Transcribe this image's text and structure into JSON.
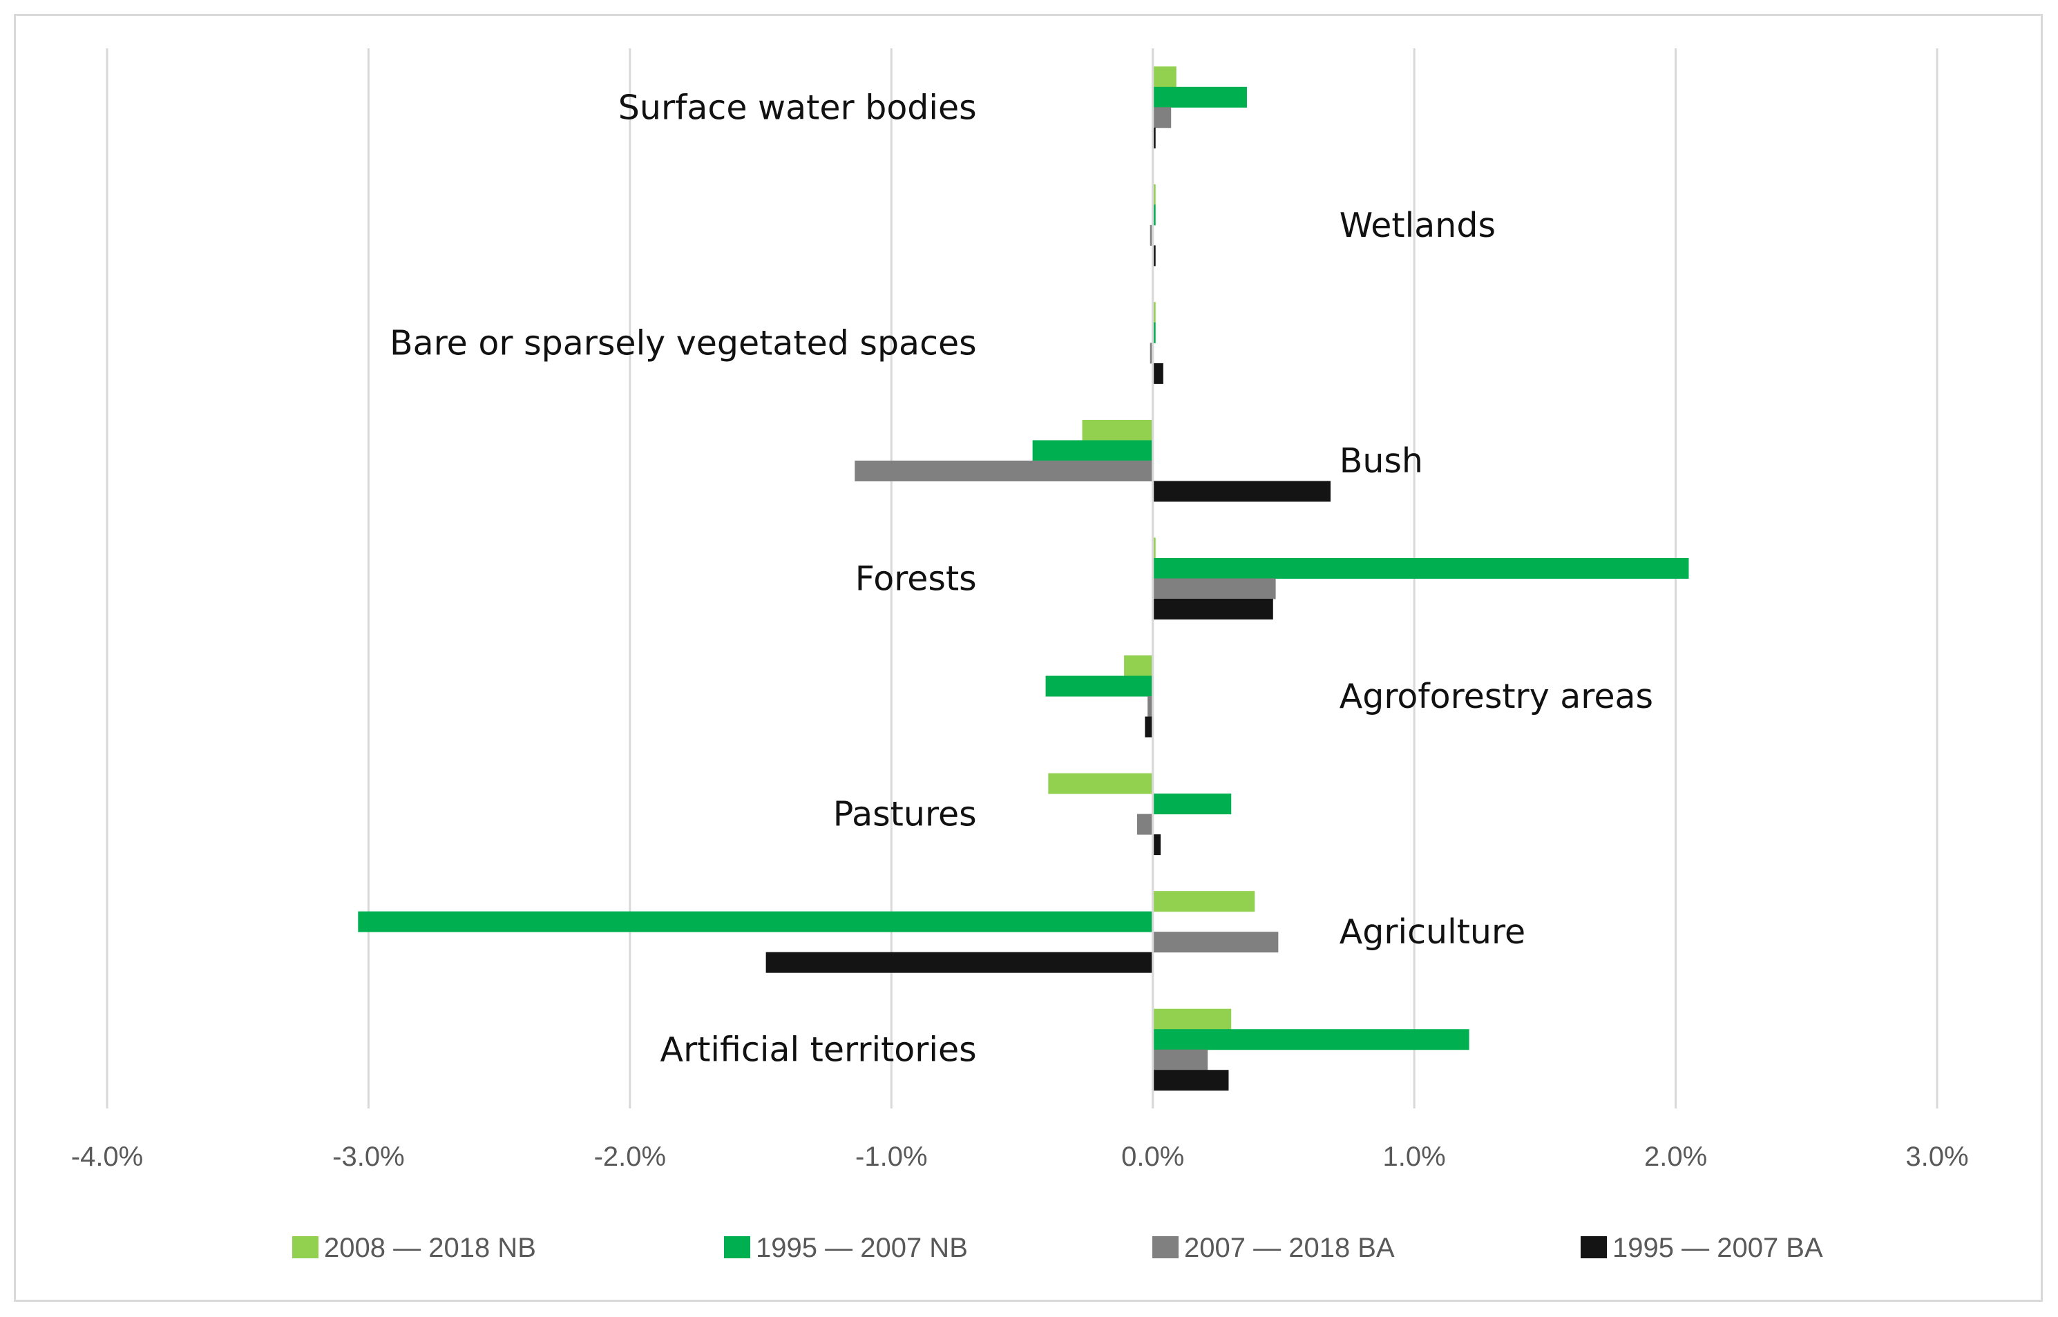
{
  "chart_data": {
    "type": "bar",
    "orientation": "horizontal",
    "title": "",
    "xlabel": "",
    "ylabel": "",
    "xlim": [
      -4.0,
      3.0
    ],
    "x_ticks": [
      -4.0,
      -3.0,
      -2.0,
      -1.0,
      0.0,
      1.0,
      2.0,
      3.0
    ],
    "x_tick_labels": [
      "-4.0%",
      "-3.0%",
      "-2.0%",
      "-1.0%",
      "0.0%",
      "1.0%",
      "2.0%",
      "3.0%"
    ],
    "grid": "vertical",
    "legend_position": "bottom",
    "categories": [
      "Surface water bodies",
      "Wetlands",
      "Bare or sparsely vegetated spaces",
      "Bush",
      "Forests",
      "Agroforestry areas",
      "Pastures",
      "Agriculture",
      "Artificial territories"
    ],
    "category_label_side": [
      "left",
      "right",
      "left",
      "right",
      "left",
      "right",
      "left",
      "right",
      "left"
    ],
    "series": [
      {
        "name": "2008‒2018 NB",
        "legend_text": "2008 — 2018 NB",
        "color": "#92d050",
        "values": [
          0.09,
          0.01,
          0.01,
          -0.27,
          0.01,
          -0.11,
          -0.4,
          0.39,
          0.3
        ]
      },
      {
        "name": "1995‒2007 NB",
        "legend_text": "1995 — 2007 NB",
        "color": "#00b050",
        "values": [
          0.36,
          0.01,
          0.01,
          -0.46,
          2.05,
          -0.41,
          0.3,
          -3.04,
          1.21
        ]
      },
      {
        "name": "2007‒2018 BA",
        "legend_text": "2007 — 2018 BA",
        "color": "#808080",
        "values": [
          0.07,
          -0.01,
          -0.01,
          -1.14,
          0.47,
          -0.02,
          -0.06,
          0.48,
          0.21
        ]
      },
      {
        "name": "1995‒2007 BA",
        "legend_text": "1995 — 2007 BA",
        "color": "#141414",
        "values": [
          0.01,
          0.01,
          0.04,
          0.68,
          0.46,
          -0.03,
          0.03,
          -1.48,
          0.29
        ]
      }
    ]
  }
}
